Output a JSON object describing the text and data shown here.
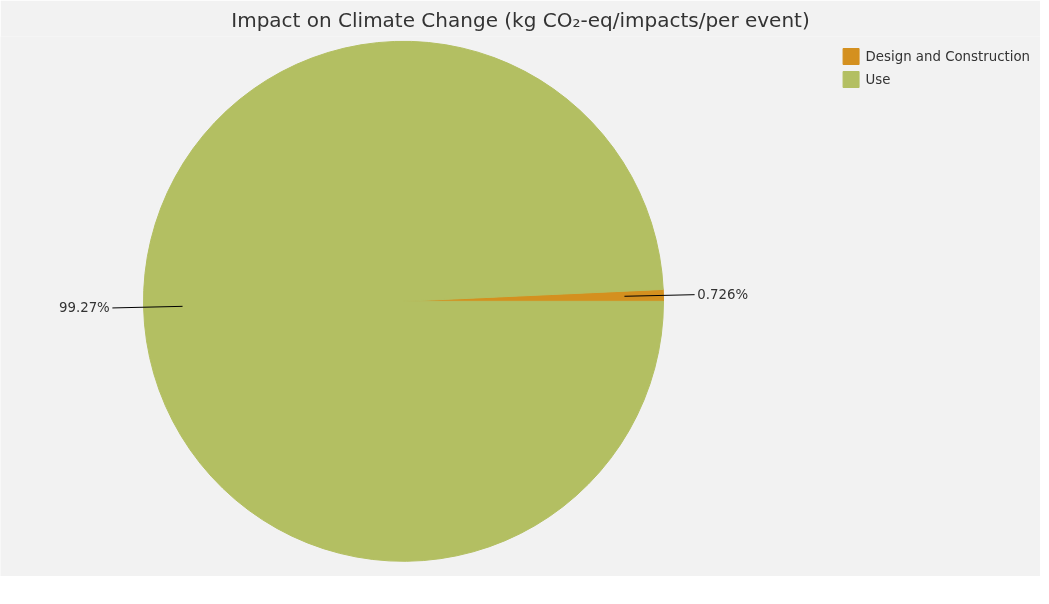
{
  "chart_data": {
    "type": "pie",
    "title": "Impact on Climate Change (kg CO₂-eq/impacts/per event)",
    "categories": [
      "Design and Construction",
      "Use"
    ],
    "values": [
      0.726,
      99.27
    ],
    "colors": [
      "#d4901f",
      "#b3bf62"
    ],
    "value_labels": [
      "0.726%",
      "99.27%"
    ],
    "legend": "top right"
  }
}
